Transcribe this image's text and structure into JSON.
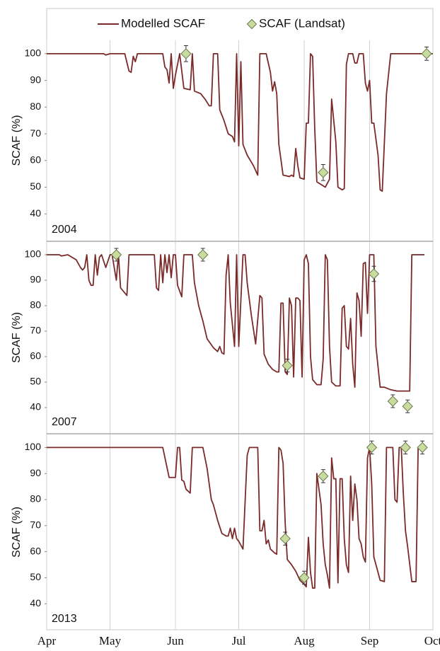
{
  "chart_data": [
    {
      "type": "line",
      "label": "2004",
      "y_label": "SCAF (%)",
      "xlim": [
        0,
        183
      ],
      "xticks": [
        0,
        30,
        61,
        91,
        122,
        153,
        183
      ],
      "ylim": [
        30,
        105
      ],
      "yticks": [
        40,
        50,
        60,
        70,
        80,
        90,
        100
      ],
      "grid": true,
      "series": [
        {
          "name": "Modelled SCAF",
          "color": "#7b2a2a",
          "x": [
            0,
            27,
            28,
            30,
            37,
            39,
            40,
            41,
            42,
            43,
            55,
            56,
            57,
            58,
            59,
            60,
            61,
            63,
            65,
            68,
            69,
            70,
            73,
            75,
            77,
            78,
            79,
            81,
            82,
            84,
            86,
            88,
            89,
            90,
            91,
            92,
            93,
            95,
            98,
            100,
            101,
            104,
            106,
            107,
            108,
            109,
            110,
            112,
            115,
            116,
            117,
            118,
            119,
            120,
            122,
            123,
            124,
            125,
            126,
            127,
            128,
            130,
            132,
            134,
            135,
            137,
            138,
            140,
            141,
            142,
            143,
            145,
            146,
            147,
            148,
            150,
            151,
            152,
            153,
            154,
            155,
            157,
            158,
            159,
            161,
            163,
            183
          ],
          "values": [
            100,
            100,
            99.5,
            100,
            100,
            93.5,
            93,
            99,
            97,
            100,
            100,
            95,
            94,
            89,
            100,
            87,
            92,
            100,
            87,
            86.5,
            100,
            86,
            85,
            83,
            80.5,
            80.5,
            100,
            100,
            79,
            75,
            70,
            69,
            67,
            100,
            65.5,
            97,
            66,
            62,
            58,
            54.5,
            100,
            100,
            93,
            86,
            89.5,
            85,
            66,
            54.5,
            54,
            54.5,
            54,
            64.5,
            58,
            53.5,
            53,
            74,
            74,
            100,
            99,
            72,
            52,
            51,
            50,
            53,
            83,
            67,
            50,
            49,
            49.5,
            96,
            100,
            100,
            96.5,
            96.5,
            100,
            100,
            89,
            86,
            90,
            74,
            74,
            62,
            49,
            48.5,
            85,
            100,
            100
          ]
        },
        {
          "name": "SCAF (Landsat)",
          "color": "#c9dca0",
          "x": [
            66,
            131,
            180
          ],
          "values": [
            100,
            55.5,
            100
          ],
          "errors": [
            3,
            3,
            2.5
          ]
        }
      ]
    },
    {
      "type": "line",
      "label": "2007",
      "y_label": "SCAF (%)",
      "xlim": [
        0,
        183
      ],
      "xticks": [
        0,
        30,
        61,
        91,
        122,
        153,
        183
      ],
      "ylim": [
        30,
        105
      ],
      "yticks": [
        40,
        50,
        60,
        70,
        80,
        90,
        100
      ],
      "grid": true,
      "series": [
        {
          "color": "#7b2a2a",
          "x": [
            0,
            6,
            7,
            10,
            14,
            16,
            17,
            18,
            19,
            20,
            21,
            22,
            23,
            24,
            25,
            26,
            28,
            30,
            31,
            33,
            34,
            35,
            38,
            39,
            51,
            52,
            53,
            54,
            55,
            56,
            57,
            58,
            59,
            60,
            61,
            62,
            64,
            65,
            69,
            70,
            72,
            74,
            76,
            79,
            81,
            82,
            83,
            84,
            85,
            86,
            87,
            89,
            90,
            91,
            93,
            94,
            95,
            97,
            99,
            101,
            102,
            103,
            105,
            107,
            109,
            110,
            111,
            112,
            113,
            114,
            115,
            116,
            117,
            118,
            119,
            120,
            121,
            122,
            123,
            124,
            125,
            126,
            128,
            130,
            131,
            132,
            133,
            134,
            135,
            137,
            139,
            140,
            141,
            142,
            143,
            144,
            145,
            146,
            147,
            148,
            149,
            150,
            151,
            152,
            153,
            155,
            156,
            157,
            158,
            160,
            163,
            166,
            172,
            173,
            179
          ],
          "values": [
            100,
            100,
            99.5,
            100,
            98,
            95,
            94,
            95,
            100,
            90,
            88,
            88,
            100,
            92,
            99,
            100,
            95,
            100,
            100,
            90,
            100,
            87,
            84,
            100,
            100,
            87,
            86,
            100,
            89,
            100,
            93,
            100,
            91,
            100,
            100,
            88,
            83.5,
            100,
            100,
            89,
            80,
            74,
            67,
            63.5,
            62,
            64,
            61.5,
            61,
            92,
            100,
            81,
            64,
            100,
            64,
            100,
            100,
            89,
            76,
            65,
            84,
            83,
            61,
            57,
            55,
            54,
            54,
            81,
            81,
            54,
            53,
            83,
            80,
            52,
            83,
            83,
            82,
            52,
            98,
            100,
            96.5,
            60,
            51,
            49,
            49,
            59,
            100,
            98,
            64,
            50,
            48.5,
            48.5,
            79,
            80,
            64,
            63,
            75,
            57,
            48,
            85,
            82,
            68,
            96.5,
            97,
            77,
            100,
            100,
            64,
            56,
            48,
            48,
            47,
            46.5,
            46.5,
            100,
            100
          ]
        },
        {
          "color": "#c9dca0",
          "x": [
            33,
            74,
            114,
            155,
            164,
            171
          ],
          "values": [
            100,
            100,
            56.5,
            92.5,
            42.5,
            40.5
          ],
          "errors": [
            2.5,
            2.5,
            2.5,
            3,
            2.5,
            2.5
          ]
        }
      ]
    },
    {
      "type": "line",
      "label": "2013",
      "y_label": "SCAF (%)",
      "xlim": [
        0,
        183
      ],
      "xticks": [
        {
          "value": 0,
          "label": "Apr"
        },
        {
          "value": 30,
          "label": "May"
        },
        {
          "value": 61,
          "label": "Jun"
        },
        {
          "value": 91,
          "label": "Jul"
        },
        {
          "value": 122,
          "label": "Aug"
        },
        {
          "value": 153,
          "label": "Sep"
        },
        {
          "value": 183,
          "label": "Oct"
        }
      ],
      "ylim": [
        30,
        105
      ],
      "yticks": [
        40,
        50,
        60,
        70,
        80,
        90,
        100
      ],
      "grid": true,
      "series": [
        {
          "color": "#7b2a2a",
          "x": [
            0,
            55,
            58,
            61,
            62,
            63,
            64,
            65,
            66,
            68,
            69,
            74,
            76,
            78,
            79,
            81,
            83,
            85,
            86,
            87,
            88,
            89,
            90,
            91,
            93,
            95,
            96,
            100,
            101,
            102,
            103,
            104,
            105,
            106,
            108,
            109,
            110,
            111,
            112,
            113,
            114,
            116,
            118,
            120,
            122,
            123,
            124,
            125,
            126,
            127,
            128,
            129,
            130,
            131,
            132,
            133,
            134,
            135,
            136,
            137,
            138,
            139,
            140,
            141,
            142,
            143,
            144,
            145,
            146,
            147,
            148,
            149,
            150,
            151,
            152,
            153,
            154,
            155,
            157,
            158,
            160,
            161,
            164,
            165,
            166,
            167,
            168,
            169,
            170,
            171,
            173,
            175,
            176,
            179
          ],
          "values": [
            100,
            100,
            88.5,
            88.5,
            100,
            100,
            87.5,
            87,
            84,
            82.5,
            100,
            100,
            92,
            80,
            78,
            72,
            67,
            66,
            66,
            69,
            65,
            69,
            65,
            64,
            61,
            97,
            100,
            100,
            68,
            68,
            72,
            63,
            64.5,
            61,
            59.5,
            59,
            100,
            99,
            94,
            71,
            57,
            55,
            52.5,
            49,
            47.5,
            46.5,
            65.5,
            52,
            46,
            46,
            90,
            84,
            78,
            63,
            55,
            51,
            46,
            96,
            88,
            88,
            48,
            88,
            88,
            65,
            55,
            52,
            89,
            72,
            86,
            80,
            65,
            63,
            58,
            56,
            96,
            100,
            86,
            58,
            52,
            49,
            48.5,
            100,
            100,
            80,
            79,
            100,
            100,
            82,
            68,
            62,
            48.5,
            48.5,
            100,
            100
          ]
        },
        {
          "color": "#c9dca0",
          "x": [
            113,
            122,
            131,
            154,
            170,
            178
          ],
          "values": [
            65,
            50,
            89,
            100,
            100,
            100
          ],
          "errors": [
            2.5,
            2.5,
            2.5,
            2.5,
            2.5,
            2.5
          ]
        }
      ]
    }
  ]
}
